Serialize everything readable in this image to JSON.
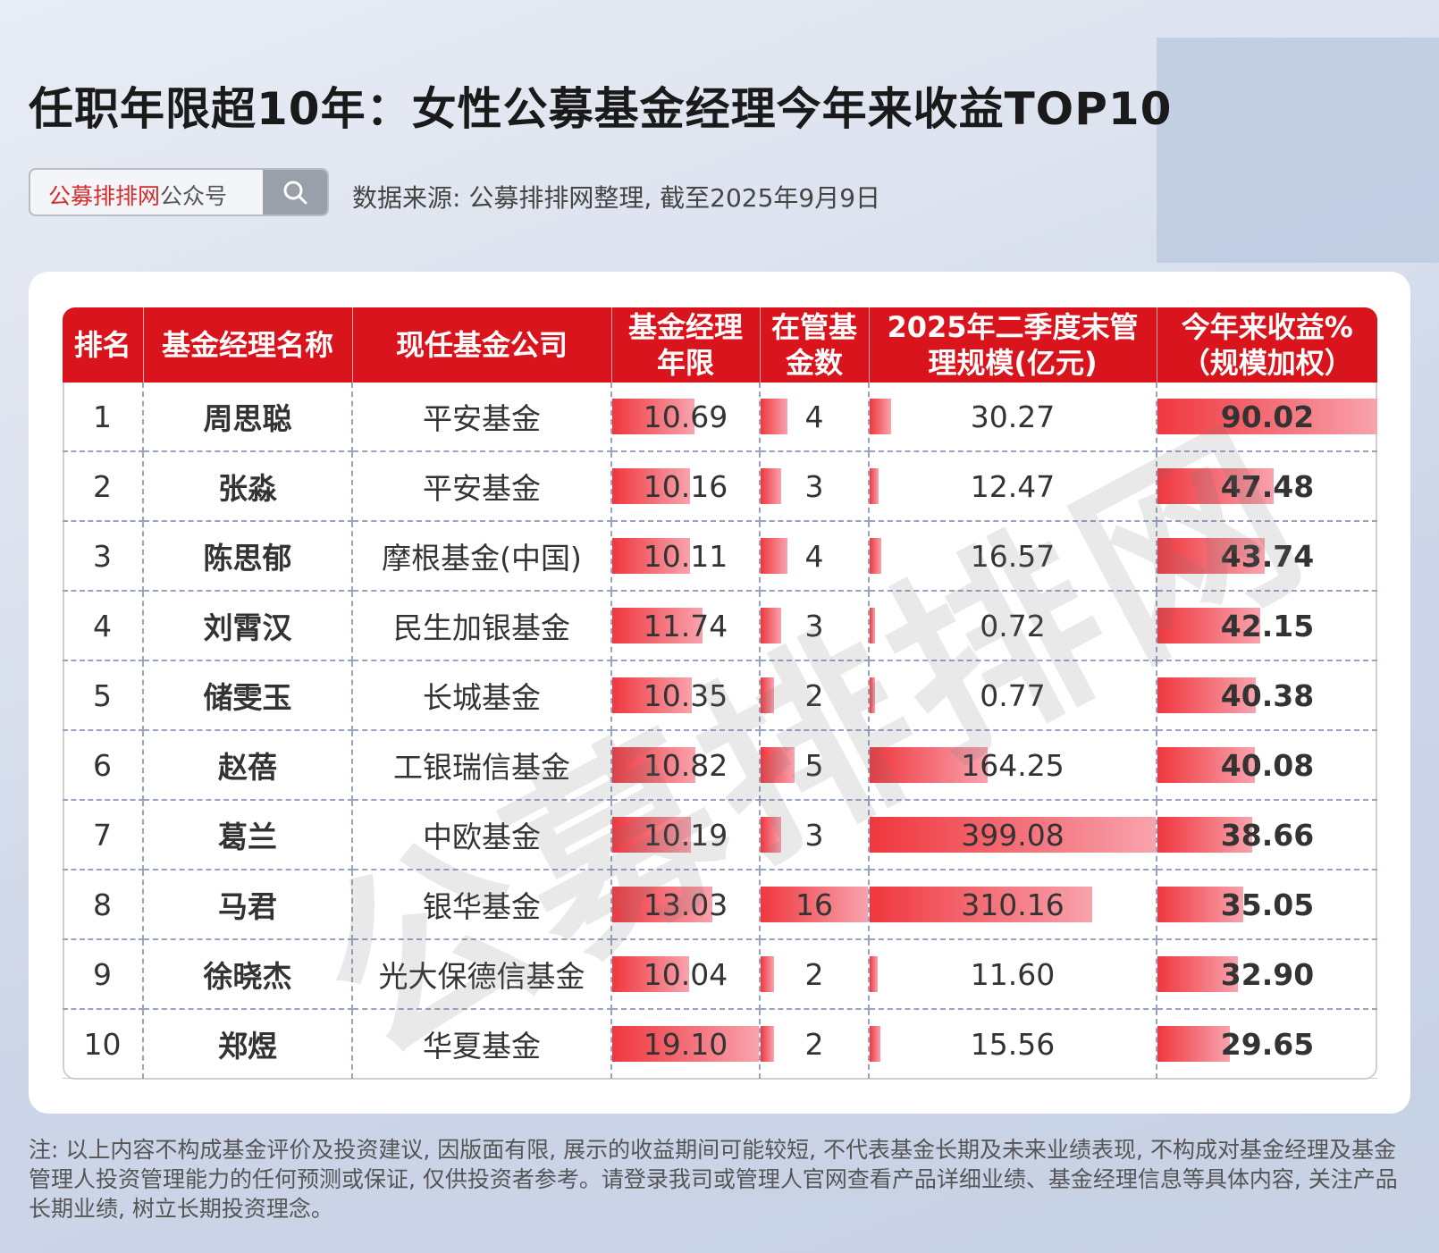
{
  "title": "任职年限超10年：女性公募基金经理今年来收益TOP10",
  "search": {
    "brand": "公募排排网",
    "suffix": "公众号"
  },
  "source": "数据来源: 公募排排网整理, 截至2025年9月9日",
  "watermark": "公募排排网",
  "headers": {
    "rank": "排名",
    "manager": "基金经理名称",
    "company": "现任基金公司",
    "years_l1": "基金经理",
    "years_l2": "年限",
    "funds_l1": "在管基",
    "funds_l2": "金数",
    "aum_l1": "2025年二季度末管",
    "aum_l2": "理规模(亿元)",
    "ret_l1": "今年来收益%",
    "ret_l2": "（规模加权）"
  },
  "table": {
    "rows": [
      {
        "rank": "1",
        "manager": "周思聪",
        "company": "平安基金",
        "years": "10.69",
        "funds": "4",
        "aum": "30.27",
        "ret": "90.02"
      },
      {
        "rank": "2",
        "manager": "张淼",
        "company": "平安基金",
        "years": "10.16",
        "funds": "3",
        "aum": "12.47",
        "ret": "47.48"
      },
      {
        "rank": "3",
        "manager": "陈思郁",
        "company": "摩根基金(中国)",
        "years": "10.11",
        "funds": "4",
        "aum": "16.57",
        "ret": "43.74"
      },
      {
        "rank": "4",
        "manager": "刘霄汉",
        "company": "民生加银基金",
        "years": "11.74",
        "funds": "3",
        "aum": "0.72",
        "ret": "42.15"
      },
      {
        "rank": "5",
        "manager": "储雯玉",
        "company": "长城基金",
        "years": "10.35",
        "funds": "2",
        "aum": "0.77",
        "ret": "40.38"
      },
      {
        "rank": "6",
        "manager": "赵蓓",
        "company": "工银瑞信基金",
        "years": "10.82",
        "funds": "5",
        "aum": "164.25",
        "ret": "40.08"
      },
      {
        "rank": "7",
        "manager": "葛兰",
        "company": "中欧基金",
        "years": "10.19",
        "funds": "3",
        "aum": "399.08",
        "ret": "38.66"
      },
      {
        "rank": "8",
        "manager": "马君",
        "company": "银华基金",
        "years": "13.03",
        "funds": "16",
        "aum": "310.16",
        "ret": "35.05"
      },
      {
        "rank": "9",
        "manager": "徐晓杰",
        "company": "光大保德信基金",
        "years": "10.04",
        "funds": "2",
        "aum": "11.60",
        "ret": "32.90"
      },
      {
        "rank": "10",
        "manager": "郑煜",
        "company": "华夏基金",
        "years": "19.10",
        "funds": "2",
        "aum": "15.56",
        "ret": "29.65"
      }
    ]
  },
  "note": "注: 以上内容不构成基金评价及投资建议, 因版面有限, 展示的收益期间可能较短, 不代表基金长期及未来业绩表现, 不构成对基金经理及基金管理人投资管理能力的任何预测或保证, 仅供投资者参考。请登录我司或管理人官网查看产品详细业绩、基金经理信息等具体内容, 关注产品长期业绩, 树立长期投资理念。",
  "colors": {
    "header": "#d9141c",
    "bar_start": "#f0373e",
    "bar_end": "#f8a3ad",
    "brand": "#d42b2b"
  }
}
